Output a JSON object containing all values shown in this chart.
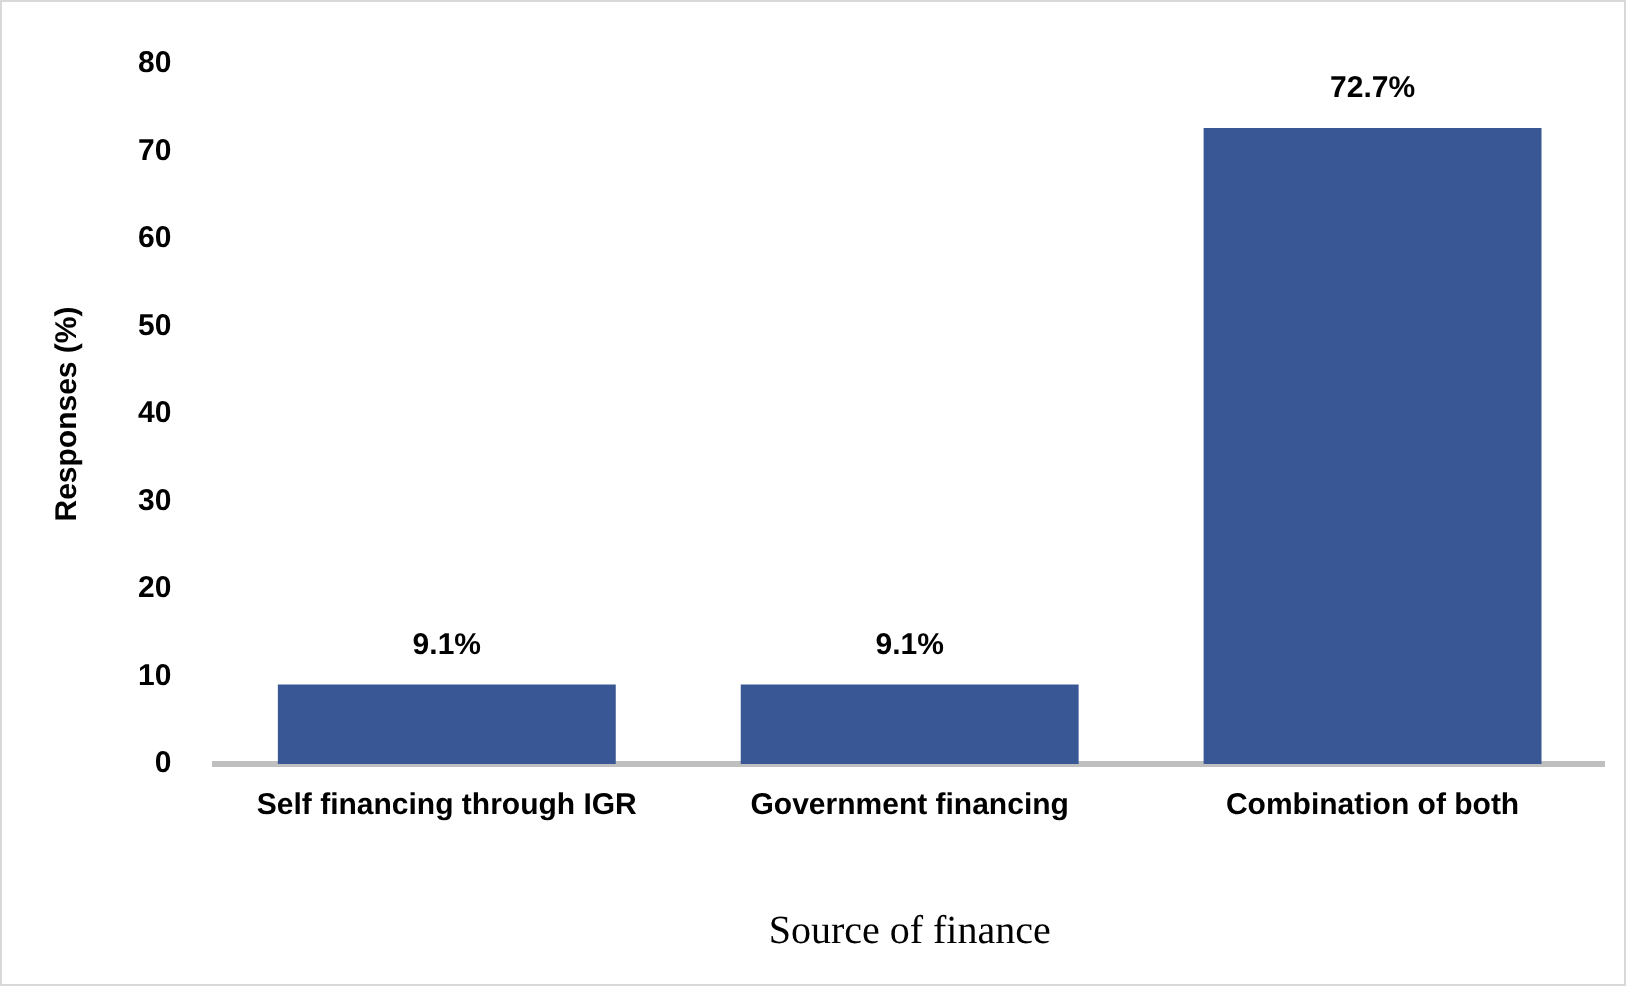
{
  "chart_data": {
    "type": "bar",
    "categories": [
      "Self financing through IGR",
      "Government financing",
      "Combination of both"
    ],
    "values": [
      9.1,
      9.1,
      72.7
    ],
    "value_labels": [
      "9.1%",
      "9.1%",
      "72.7%"
    ],
    "color": "#3a5795",
    "xlabel": "Source of finance",
    "ylabel": "Responses (%)",
    "ylim": [
      0,
      80
    ],
    "yticks": [
      0,
      10,
      20,
      30,
      40,
      50,
      60,
      70,
      80
    ],
    "grid": false,
    "legend": false
  }
}
